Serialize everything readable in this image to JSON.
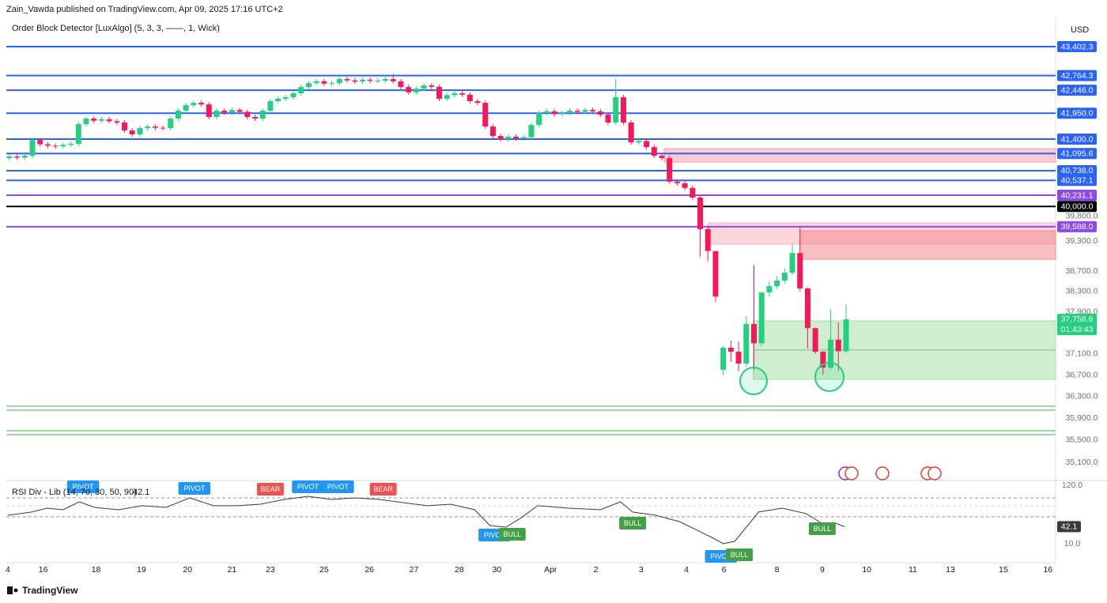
{
  "header": {
    "publisher": "Zain_Vawda published on TradingView.com, Apr 09, 2025 17:16 UTC+2",
    "indicator": "Order Block Detector [LuxAlgo] (5, 3, 3, ——, 1, Wick)",
    "currency": "USD",
    "brand": "TradingView"
  },
  "chart_data": [
    {
      "type": "candlestick",
      "up_color": "#22d07f",
      "down_color": "#f5195c",
      "log_scale": true,
      "ylim": [
        34790,
        44055
      ],
      "xlim": [
        -0.4,
        136.3
      ],
      "open": [
        41000,
        41033,
        41010,
        41050,
        41380,
        41290,
        41260,
        41248,
        41280,
        41300,
        41718,
        41836,
        41790,
        41820,
        41780,
        41752,
        41583,
        41499,
        41633,
        41667,
        41640,
        41633,
        41836,
        42005,
        42124,
        42174,
        42140,
        41870,
        42005,
        41960,
        42020,
        41980,
        41870,
        41836,
        42005,
        42210,
        42262,
        42295,
        42380,
        42516,
        42600,
        42640,
        42590,
        42600,
        42689,
        42660,
        42634,
        42672,
        42650,
        42655,
        42689,
        42640,
        42516,
        42400,
        42480,
        42550,
        42520,
        42262,
        42340,
        42380,
        42350,
        42210,
        42174,
        41667,
        41466,
        41400,
        41450,
        41415,
        41440,
        41700,
        41955,
        41990,
        41930,
        41955,
        42005,
        41980,
        42020,
        41990,
        41920,
        41752,
        42295,
        41752,
        41331,
        41360,
        41232,
        41050,
        41000,
        40510,
        40478,
        40380,
        40182,
        39540,
        39100,
        36800,
        37217,
        37140,
        36916,
        37670,
        37300,
        38280,
        38405,
        38515,
        38670,
        39060,
        38360,
        37590,
        37140,
        36840,
        37370,
        37150
      ],
      "high": [
        41083,
        41083,
        41100,
        41430,
        41430,
        41340,
        41310,
        41330,
        41350,
        41768,
        41886,
        41886,
        41870,
        41870,
        41830,
        41802,
        41633,
        41683,
        41717,
        41717,
        41690,
        41886,
        42055,
        42174,
        42224,
        42224,
        42190,
        42055,
        42055,
        42070,
        42070,
        42030,
        41920,
        42055,
        42260,
        42312,
        42345,
        42430,
        42566,
        42650,
        42690,
        42690,
        42650,
        42739,
        42739,
        42710,
        42722,
        42722,
        42705,
        42739,
        42800,
        42690,
        42566,
        42530,
        42600,
        42600,
        42570,
        42390,
        42430,
        42430,
        42400,
        42260,
        42224,
        41717,
        41516,
        41500,
        41500,
        41490,
        41750,
        42005,
        42040,
        42040,
        42005,
        42055,
        42055,
        42070,
        42070,
        42040,
        41970,
        42689,
        42345,
        41802,
        41410,
        41410,
        41282,
        41100,
        41050,
        40560,
        40528,
        40430,
        40230,
        39620,
        39100,
        37250,
        37350,
        37330,
        37820,
        38820,
        38300,
        38500,
        38600,
        38750,
        39230,
        39580,
        38380,
        37600,
        37150,
        37950,
        37700,
        38050
      ],
      "low": [
        40950,
        40960,
        40960,
        41000,
        41240,
        41210,
        41198,
        41198,
        41230,
        41250,
        41668,
        41740,
        41740,
        41730,
        41702,
        41533,
        41449,
        41449,
        41583,
        41590,
        41583,
        41583,
        41786,
        41955,
        42074,
        42090,
        41820,
        41820,
        41910,
        41910,
        41930,
        41820,
        41786,
        41786,
        41955,
        42160,
        42212,
        42245,
        42330,
        42466,
        42550,
        42540,
        42540,
        42550,
        42610,
        42584,
        42584,
        42600,
        42600,
        42605,
        42590,
        42466,
        42350,
        42350,
        42430,
        42470,
        42212,
        42212,
        42290,
        42300,
        42160,
        42124,
        41617,
        41416,
        41350,
        41350,
        41365,
        41365,
        41390,
        41650,
        41905,
        41880,
        41880,
        41905,
        41930,
        41930,
        41940,
        41870,
        41702,
        41702,
        41702,
        41281,
        41281,
        41182,
        41000,
        40950,
        40460,
        40428,
        40330,
        40132,
        38985,
        38900,
        38100,
        36690,
        36950,
        36770,
        36850,
        36800,
        37250,
        38200,
        38350,
        38450,
        38620,
        38300,
        37200,
        37100,
        36700,
        36800,
        36780,
        37120
      ],
      "close": [
        41033,
        41010,
        41050,
        41380,
        41290,
        41260,
        41248,
        41280,
        41300,
        41718,
        41836,
        41790,
        41820,
        41780,
        41752,
        41583,
        41499,
        41633,
        41667,
        41640,
        41633,
        41836,
        42005,
        42124,
        42174,
        42140,
        41870,
        42005,
        41960,
        42020,
        41980,
        41870,
        41836,
        42005,
        42210,
        42262,
        42295,
        42380,
        42516,
        42600,
        42640,
        42590,
        42600,
        42689,
        42660,
        42634,
        42672,
        42650,
        42655,
        42689,
        42640,
        42516,
        42400,
        42480,
        42550,
        42520,
        42262,
        42340,
        42380,
        42350,
        42210,
        42174,
        41667,
        41466,
        41400,
        41450,
        41415,
        41440,
        41700,
        41955,
        41990,
        41930,
        41955,
        42005,
        41980,
        42020,
        41990,
        41920,
        41752,
        42295,
        41752,
        41331,
        41360,
        41232,
        41050,
        41000,
        40510,
        40478,
        40380,
        40182,
        39540,
        39100,
        38200,
        37217,
        37140,
        36916,
        37670,
        37300,
        38280,
        38405,
        38515,
        38670,
        39060,
        38360,
        37590,
        37140,
        36840,
        37370,
        37150,
        37758.6
      ],
      "yticks": [
        {
          "value": 39800,
          "label": "39,800.0"
        },
        {
          "value": 39300,
          "label": "39,300.0"
        },
        {
          "value": 38700,
          "label": "38,700.0"
        },
        {
          "value": 38300,
          "label": "38,300.0"
        },
        {
          "value": 37900,
          "label": "37,900.0"
        },
        {
          "value": 37100,
          "label": "37,100.0"
        },
        {
          "value": 36700,
          "label": "36,700.0"
        },
        {
          "value": 36300,
          "label": "36,300.0"
        },
        {
          "value": 35900,
          "label": "35,900.0"
        },
        {
          "value": 35500,
          "label": "35,500.0"
        },
        {
          "value": 35100,
          "label": "35,100.0"
        }
      ],
      "xticks": [
        {
          "value": -0.2,
          "label": "4"
        },
        {
          "value": 4.4,
          "label": "16"
        },
        {
          "value": 11.3,
          "label": "18"
        },
        {
          "value": 17.2,
          "label": "19"
        },
        {
          "value": 23.2,
          "label": "20"
        },
        {
          "value": 29.0,
          "label": "21"
        },
        {
          "value": 34.0,
          "label": "23"
        },
        {
          "value": 41.0,
          "label": "25"
        },
        {
          "value": 46.9,
          "label": "26"
        },
        {
          "value": 52.7,
          "label": "27"
        },
        {
          "value": 58.6,
          "label": "28"
        },
        {
          "value": 63.5,
          "label": "30"
        },
        {
          "value": 70.5,
          "label": "Apr"
        },
        {
          "value": 76.4,
          "label": "2"
        },
        {
          "value": 82.3,
          "label": "3"
        },
        {
          "value": 88.2,
          "label": "4"
        },
        {
          "value": 93.1,
          "label": "6"
        },
        {
          "value": 100.0,
          "label": "8"
        },
        {
          "value": 105.9,
          "label": "9"
        },
        {
          "value": 111.7,
          "label": "10"
        },
        {
          "value": 117.7,
          "label": "11"
        },
        {
          "value": 122.6,
          "label": "13"
        },
        {
          "value": 129.5,
          "label": "15"
        },
        {
          "value": 135.3,
          "label": "16"
        }
      ],
      "levels": [
        {
          "value": 43402.3,
          "label": "43,402.3",
          "color": "#2962ff"
        },
        {
          "value": 42764.3,
          "label": "42,764.3",
          "color": "#2962ff"
        },
        {
          "value": 42446.0,
          "label": "42,446.0",
          "color": "#2962ff"
        },
        {
          "value": 41950.0,
          "label": "41,950.0",
          "color": "#2962ff"
        },
        {
          "value": 41400.0,
          "label": "41,400.0",
          "color": "#2962ff"
        },
        {
          "value": 41095.6,
          "label": "41,095.6",
          "color": "#2962ff"
        },
        {
          "value": 40738.0,
          "label": "40,738.0",
          "color": "#2962ff"
        },
        {
          "value": 40537.1,
          "label": "40,537.1",
          "color": "#2962ff"
        },
        {
          "value": 40231.1,
          "label": "40,231.1",
          "color": "#8c4be8"
        },
        {
          "value": 40000.0,
          "label": "40,000.0",
          "color": "#000000"
        },
        {
          "value": 39588.0,
          "label": "39,588.0",
          "color": "#8c4be8"
        }
      ],
      "support_lines": [
        36120,
        36047,
        35671,
        35600
      ],
      "support_color": "#9fd8a2",
      "zones": [
        {
          "start": 85.3,
          "top": 41198,
          "bottom": 40918,
          "color": "#f7a1a8"
        },
        {
          "start": 91.1,
          "top": 39666,
          "bottom": 39236,
          "color": "#f9b4b9"
        },
        {
          "start": 103.0,
          "top": 39506,
          "bottom": 38936,
          "color": "#f38a92"
        },
        {
          "start": 96.9,
          "top": 37729,
          "bottom": 36620,
          "color": "#a8dfa8"
        }
      ],
      "zone_mid": {
        "start": 96.9,
        "value": 37172
      },
      "last_price": {
        "value": 37758.6,
        "label": "37,758.6",
        "countdown": "01:43:43",
        "color": "#22d07f"
      }
    },
    {
      "type": "line",
      "title": "RSI Div - Lib (14, 70, 30, 50, 90)",
      "title_value": "42.1",
      "color": "#3b3b3b",
      "ylim": [
        -25.7,
        125.9
      ],
      "xlim": [
        -0.4,
        136.3
      ],
      "yticks": [
        {
          "value": 120,
          "label": "120.0"
        },
        {
          "value": 10,
          "label": "10.0"
        }
      ],
      "levels": [
        96.2,
        81.4,
        60.6
      ],
      "level_colors": [
        "#9598a1",
        "#d8dae0",
        "#e57373"
      ],
      "x": [
        -0.2,
        2.9,
        4.9,
        7.0,
        9.1,
        11.1,
        14.2,
        17.3,
        20.4,
        23.5,
        26.6,
        29.7,
        32.7,
        35.8,
        38.9,
        42.0,
        45.1,
        48.2,
        51.3,
        54.4,
        57.5,
        60.6,
        62.6,
        64.7,
        66.7,
        68.8,
        72.9,
        77.0,
        79.6,
        81.2,
        84.2,
        87.3,
        89.4,
        91.5,
        93.0,
        94.5,
        96.1,
        97.6,
        100.7,
        103.8,
        105.9,
        107.4,
        108.8
      ],
      "values": [
        63.5,
        69.5,
        76.9,
        73.9,
        88.8,
        78.4,
        73.9,
        81.4,
        78.4,
        96.2,
        81.4,
        81.4,
        84.3,
        93.2,
        99.2,
        93.2,
        96.2,
        93.2,
        87.3,
        81.4,
        84.3,
        73.9,
        44.2,
        41.2,
        59.1,
        81.4,
        76.9,
        73.9,
        88.8,
        69.5,
        63.5,
        51.6,
        36.8,
        21.9,
        10,
        14.5,
        42.7,
        69.5,
        76.9,
        66.5,
        48,
        50,
        42.1
      ],
      "last": {
        "value": 42.1,
        "label": "42.1",
        "color": "#3b3b3b"
      },
      "signals": [
        {
          "label": "PIVOT",
          "x": 9.6,
          "y": 117.0,
          "color": "#2196f3"
        },
        {
          "label": "PIVOT",
          "x": 24.1,
          "y": 114.1,
          "color": "#2196f3"
        },
        {
          "label": "BEAR",
          "x": 34.0,
          "y": 112.6,
          "color": "#ef5350"
        },
        {
          "label": "PIVOT",
          "x": 38.9,
          "y": 117.0,
          "color": "#2196f3"
        },
        {
          "label": "PIVOT",
          "x": 42.8,
          "y": 117.0,
          "color": "#2196f3"
        },
        {
          "label": "BEAR",
          "x": 48.7,
          "y": 112.6,
          "color": "#ef5350"
        },
        {
          "label": "PIVOT",
          "x": 63.2,
          "y": 26.4,
          "color": "#2196f3"
        },
        {
          "label": "BULL",
          "x": 65.5,
          "y": 27.8,
          "color": "#43a047"
        },
        {
          "label": "BULL",
          "x": 81.2,
          "y": 48.7,
          "color": "#43a047"
        },
        {
          "label": "PIVOT",
          "x": 92.7,
          "y": -13.8,
          "color": "#2196f3"
        },
        {
          "label": "BULL",
          "x": 95.1,
          "y": -10.8,
          "color": "#43a047"
        },
        {
          "label": "BULL",
          "x": 105.9,
          "y": 38.2,
          "color": "#43a047"
        }
      ]
    }
  ]
}
